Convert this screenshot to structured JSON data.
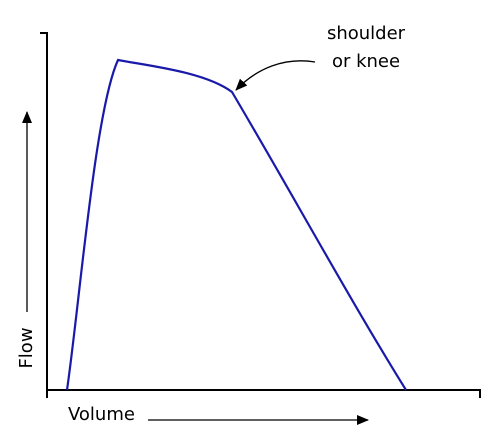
{
  "annotation": {
    "lines": [
      "shoulder",
      "or knee"
    ]
  },
  "axes": {
    "x_label": "Volume",
    "y_label": "Flow"
  }
}
